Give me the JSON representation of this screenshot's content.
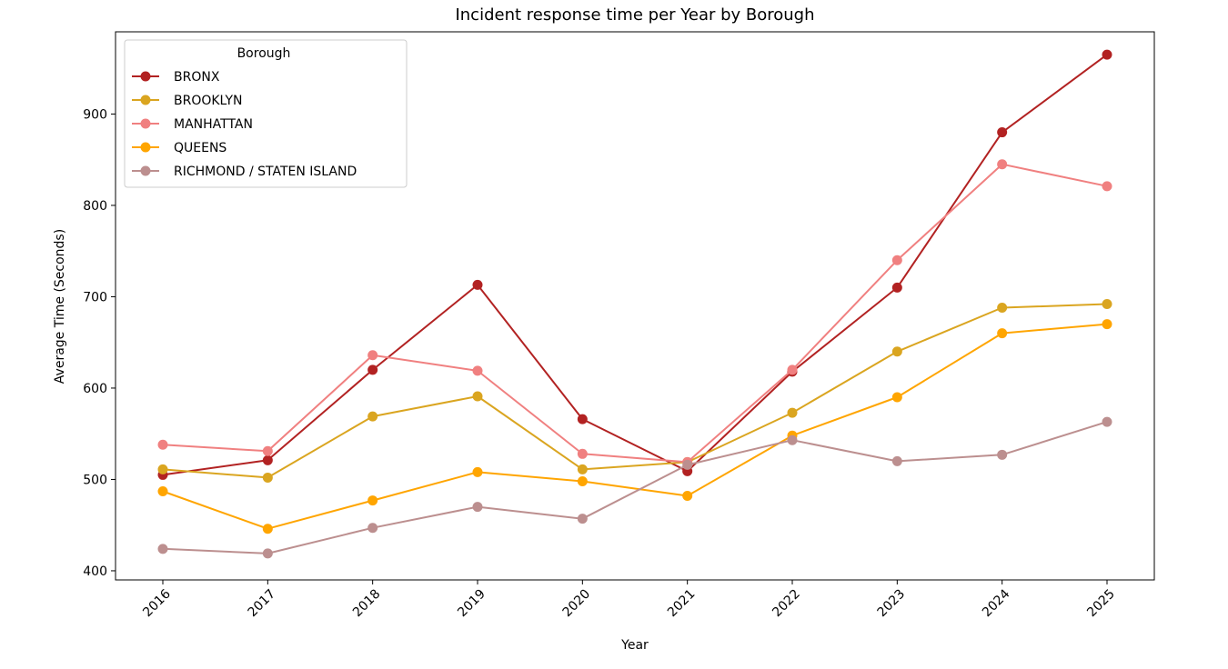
{
  "chart_data": {
    "type": "line",
    "title": "Incident response time per Year by Borough",
    "xlabel": "Year",
    "ylabel": "Average Time (Seconds)",
    "x": [
      "2016",
      "2017",
      "2018",
      "2019",
      "2020",
      "2021",
      "2022",
      "2023",
      "2024",
      "2025"
    ],
    "ylim": [
      390,
      990
    ],
    "yticks": [
      400,
      500,
      600,
      700,
      800,
      900
    ],
    "grid": false,
    "legend": {
      "title": "Borough",
      "placement": "top-left"
    },
    "series": [
      {
        "name": "BRONX",
        "color": "#b22222",
        "values": [
          505,
          521,
          620,
          713,
          566,
          509,
          618,
          710,
          880,
          965
        ]
      },
      {
        "name": "BROOKLYN",
        "color": "#daa520",
        "values": [
          511,
          502,
          569,
          591,
          511,
          519,
          573,
          640,
          688,
          692
        ]
      },
      {
        "name": "MANHATTAN",
        "color": "#f08080",
        "values": [
          538,
          531,
          636,
          619,
          528,
          519,
          620,
          740,
          845,
          821
        ]
      },
      {
        "name": "QUEENS",
        "color": "#ffa500",
        "values": [
          487,
          446,
          477,
          508,
          498,
          482,
          548,
          590,
          660,
          670
        ]
      },
      {
        "name": "RICHMOND / STATEN ISLAND",
        "color": "#bc8f8f",
        "values": [
          424,
          419,
          447,
          470,
          457,
          516,
          543,
          520,
          527,
          563
        ]
      }
    ]
  }
}
